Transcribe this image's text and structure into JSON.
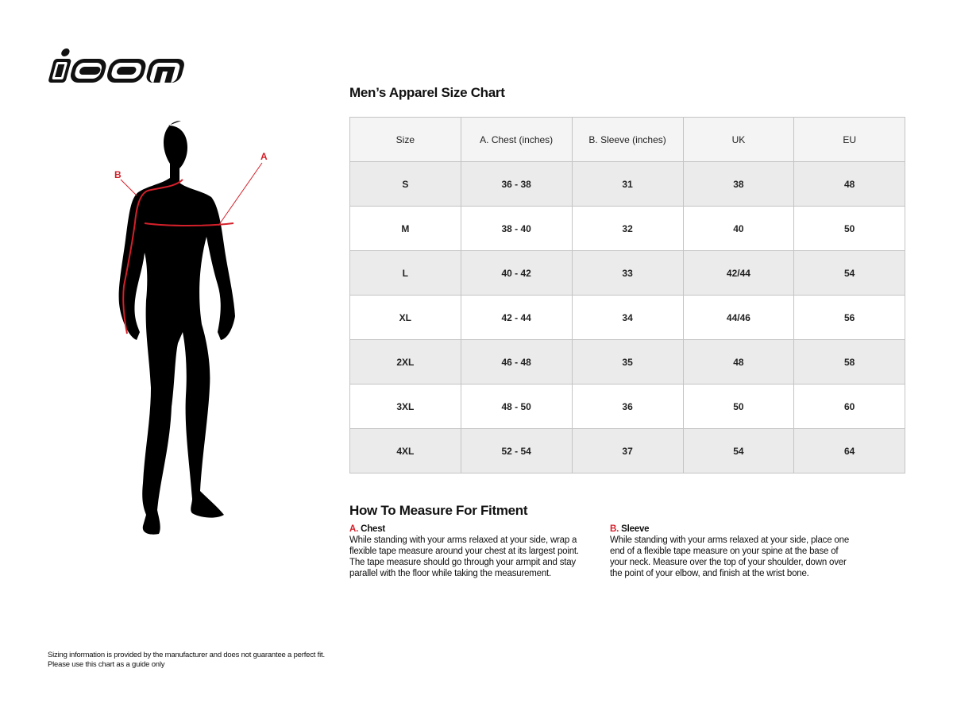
{
  "brand": {
    "logo_text": "icon"
  },
  "figure": {
    "label_a": "A",
    "label_b": "B",
    "accent": "#d4202a"
  },
  "title": "Men’s Apparel Size Chart",
  "table": {
    "headers": [
      "Size",
      "A. Chest (inches)",
      "B. Sleeve (inches)",
      "UK",
      "EU"
    ],
    "rows": [
      [
        "S",
        "36 - 38",
        "31",
        "38",
        "48"
      ],
      [
        "M",
        "38 - 40",
        "32",
        "40",
        "50"
      ],
      [
        "L",
        "40 - 42",
        "33",
        "42/44",
        "54"
      ],
      [
        "XL",
        "42 - 44",
        "34",
        "44/46",
        "56"
      ],
      [
        "2XL",
        "46 - 48",
        "35",
        "48",
        "58"
      ],
      [
        "3XL",
        "48 - 50",
        "36",
        "50",
        "60"
      ],
      [
        "4XL",
        "52 - 54",
        "37",
        "54",
        "64"
      ]
    ]
  },
  "how": {
    "title": "How To Measure For Fitment",
    "chest": {
      "letter": "A.",
      "name": "Chest",
      "text": "While standing with your arms relaxed at your side, wrap a flexible tape measure around your chest at its largest point. The tape measure should go through your armpit and stay parallel with the floor while taking the measurement."
    },
    "sleeve": {
      "letter": "B.",
      "name": "Sleeve",
      "text": "While standing with your arms relaxed at your side, place one end of a flexible tape measure on your spine at the base of your neck. Measure over the top of your shoulder, down over the point of your elbow, and finish at the wrist bone."
    }
  },
  "footer": {
    "line1": "Sizing information is provided by the manufacturer and does not guarantee a perfect fit.",
    "line2": "Please use this chart as a guide only"
  }
}
